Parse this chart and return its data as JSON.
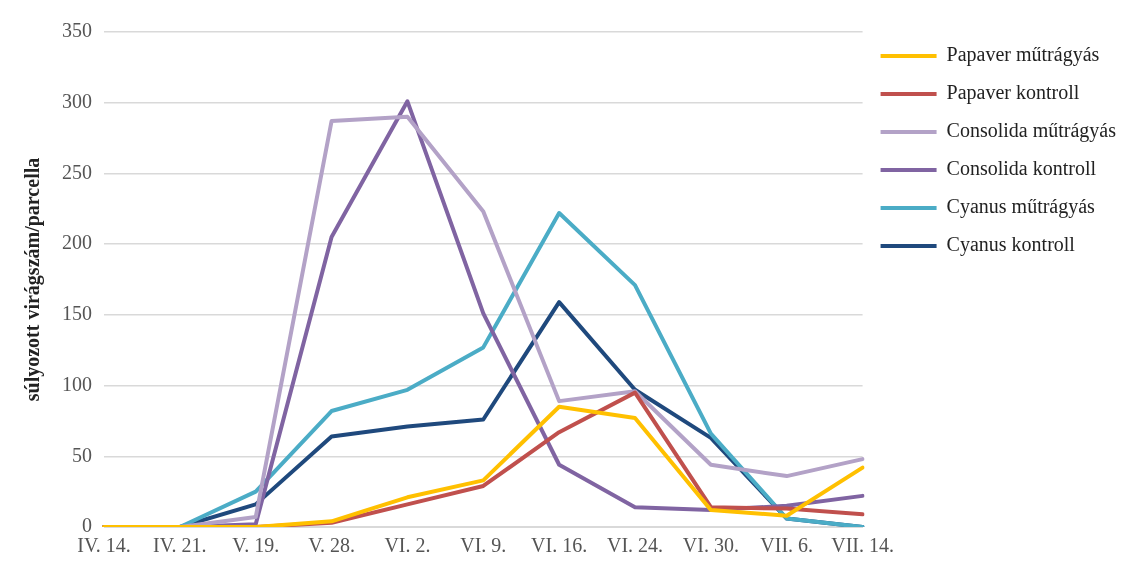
{
  "chart_data": {
    "type": "line",
    "ylabel": "súlyozott virágszám/parcella",
    "categories": [
      "IV. 14.",
      "IV. 21.",
      "V. 19.",
      "V. 28.",
      "VI. 2.",
      "VI. 9.",
      "VI. 16.",
      "VI. 24.",
      "VI. 30.",
      "VII. 6.",
      "VII. 14."
    ],
    "ylim": [
      0,
      350
    ],
    "yticks": [
      0,
      50,
      100,
      150,
      200,
      250,
      300,
      350
    ],
    "grid": "y",
    "legend": "right",
    "marker": "none",
    "line_style": "solid",
    "series": [
      {
        "name": "Papaver műtrágyás",
        "color": "#ffc000",
        "values": [
          0,
          0,
          0,
          4,
          21,
          33,
          85,
          77,
          12,
          8,
          42
        ]
      },
      {
        "name": "Papaver kontroll",
        "color": "#c0504d",
        "values": [
          0,
          0,
          0,
          3,
          16,
          29,
          67,
          95,
          14,
          13,
          9
        ]
      },
      {
        "name": "Consolida műtrágyás",
        "color": "#b3a2c7",
        "values": [
          0,
          0,
          7,
          287,
          290,
          223,
          89,
          96,
          44,
          36,
          48
        ]
      },
      {
        "name": "Consolida kontroll",
        "color": "#8064a2",
        "values": [
          0,
          0,
          2,
          205,
          301,
          151,
          44,
          14,
          12,
          15,
          22
        ]
      },
      {
        "name": "Cyanus műtrágyás",
        "color": "#4bacc6",
        "values": [
          0,
          0,
          25,
          82,
          97,
          127,
          222,
          171,
          66,
          6,
          0
        ]
      },
      {
        "name": "Cyanus kontroll",
        "color": "#1f497d",
        "values": [
          0,
          0,
          16,
          64,
          71,
          76,
          159,
          97,
          63,
          6,
          0
        ]
      }
    ]
  }
}
